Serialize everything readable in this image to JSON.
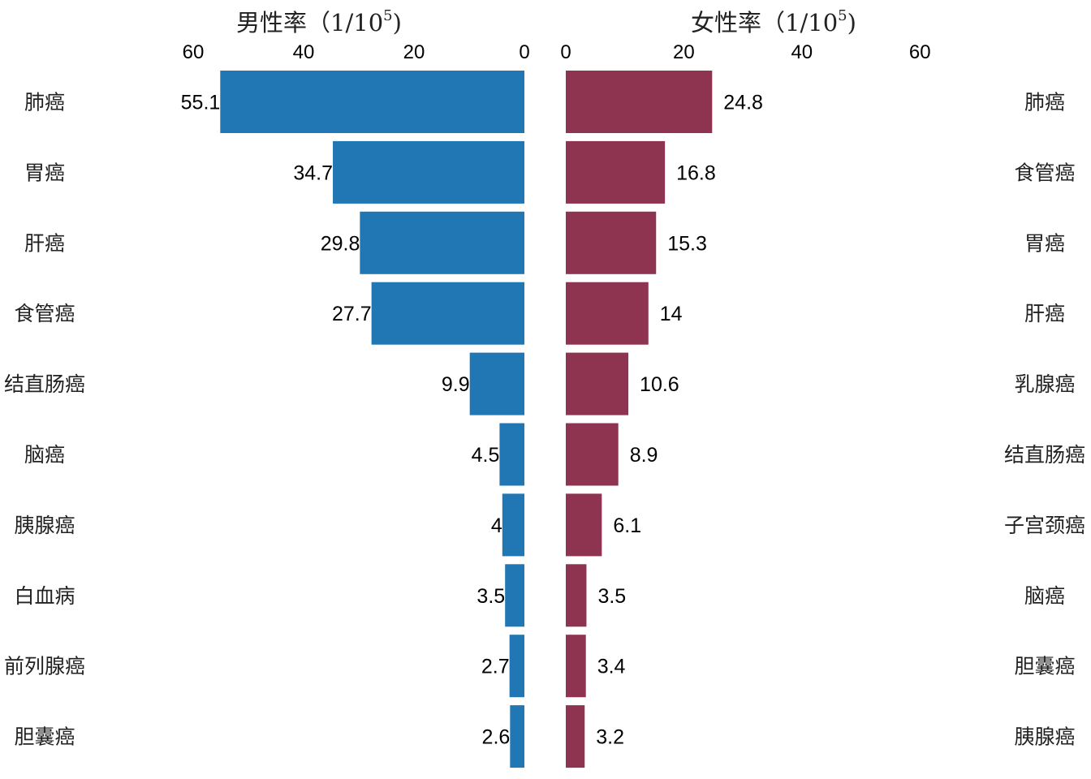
{
  "chart_data": [
    {
      "type": "bar",
      "orientation": "horizontal",
      "direction": "right-to-left",
      "title": "男性率（1/10",
      "title_sup": "5",
      "title_tail": ")",
      "categories": [
        "肺癌",
        "胃癌",
        "肝癌",
        "食管癌",
        "结直肠癌",
        "脑癌",
        "胰腺癌",
        "白血病",
        "前列腺癌",
        "胆囊癌"
      ],
      "values": [
        55.1,
        34.7,
        29.8,
        27.7,
        9.9,
        4.5,
        4,
        3.5,
        2.7,
        2.6
      ],
      "value_labels": [
        "55.1",
        "34.7",
        "29.8",
        "27.7",
        "9.9",
        "4.5",
        "4",
        "3.5",
        "2.7",
        "2.6"
      ],
      "ticks": [
        0,
        20,
        40,
        60
      ],
      "tick_labels": [
        "0",
        "20",
        "40",
        "60"
      ],
      "xlim": [
        0,
        60
      ],
      "axis_position": "top",
      "grid": false,
      "color": "#2077b4"
    },
    {
      "type": "bar",
      "orientation": "horizontal",
      "direction": "left-to-right",
      "title": "女性率（1/10",
      "title_sup": "5",
      "title_tail": ")",
      "categories": [
        "肺癌",
        "食管癌",
        "胃癌",
        "肝癌",
        "乳腺癌",
        "结直肠癌",
        "子宫颈癌",
        "脑癌",
        "胆囊癌",
        "胰腺癌"
      ],
      "values": [
        24.8,
        16.8,
        15.3,
        14,
        10.6,
        8.9,
        6.1,
        3.5,
        3.4,
        3.2
      ],
      "value_labels": [
        "24.8",
        "16.8",
        "15.3",
        "14",
        "10.6",
        "8.9",
        "6.1",
        "3.5",
        "3.4",
        "3.2"
      ],
      "ticks": [
        0,
        20,
        40,
        60
      ],
      "tick_labels": [
        "0",
        "20",
        "40",
        "60"
      ],
      "xlim": [
        0,
        60
      ],
      "axis_position": "top",
      "grid": false,
      "color": "#8f3450"
    }
  ]
}
